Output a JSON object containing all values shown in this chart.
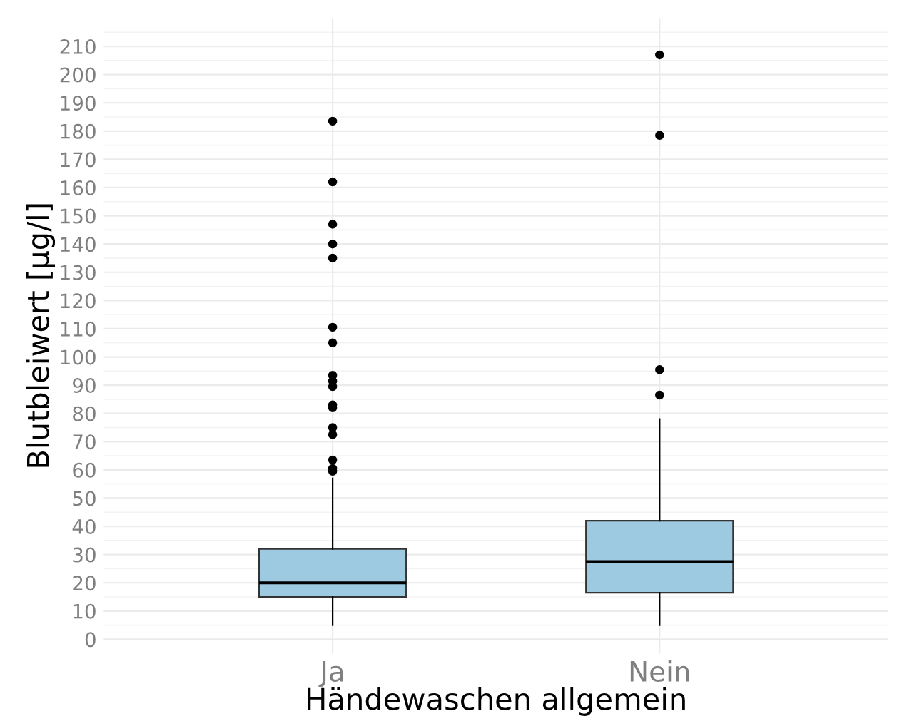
{
  "chart_data": {
    "type": "box",
    "xlabel": "Händewaschen allgemein",
    "ylabel": "Blutbleiwert [µg/l]",
    "categories": [
      "Ja",
      "Nein"
    ],
    "series": [
      {
        "color": "#9ecae1",
        "boxes": [
          {
            "low": 5,
            "q1": 15,
            "median": 20,
            "q3": 32,
            "high": 57,
            "outliers": [
              183.5,
              162,
              147,
              140,
              135,
              110.5,
              105,
              93.5,
              91.5,
              89.5,
              83,
              82,
              75,
              72.5,
              63.5,
              60.5,
              59.5
            ]
          },
          {
            "low": 5,
            "q1": 16.5,
            "median": 27.5,
            "q3": 42,
            "high": 78,
            "outliers": [
              207,
              178.5,
              95.5,
              86.5
            ]
          }
        ]
      }
    ],
    "ylim": [
      -5,
      220
    ],
    "yticks": [
      0,
      10,
      20,
      30,
      40,
      50,
      60,
      70,
      80,
      90,
      100,
      110,
      120,
      130,
      140,
      150,
      160,
      170,
      180,
      190,
      200,
      210
    ],
    "grid": true
  }
}
